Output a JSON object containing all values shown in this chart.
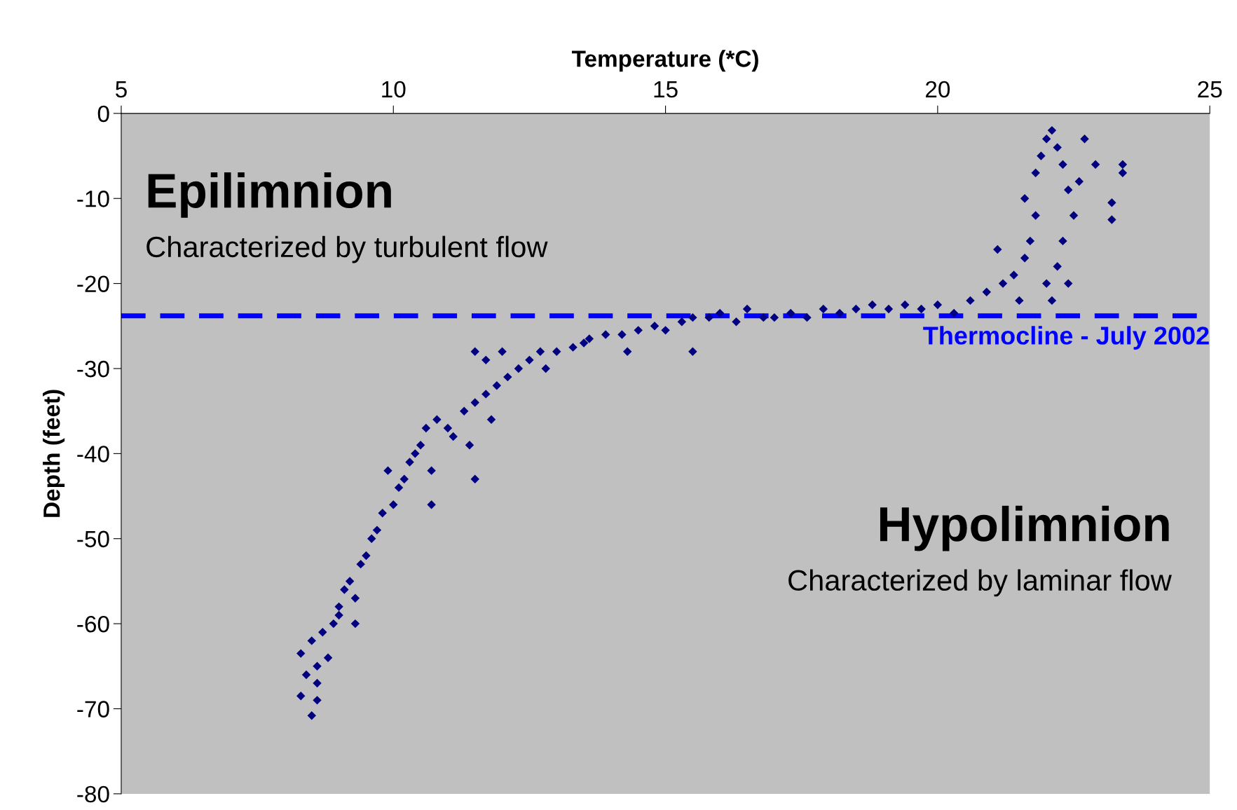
{
  "chart_data": {
    "type": "scatter",
    "xlabel": "Temperature (*C)",
    "ylabel": "Depth (feet)",
    "xlim": [
      5,
      25
    ],
    "xticks": [
      5,
      10,
      15,
      20,
      25
    ],
    "ylim": [
      -80,
      0
    ],
    "yticks": [
      -80,
      -70,
      -60,
      -50,
      -40,
      -30,
      -20,
      -10,
      0
    ],
    "marker": "diamond",
    "grid": false,
    "legend": false,
    "series": [
      {
        "color": "#000080",
        "x": [
          8.3,
          8.5,
          8.6,
          8.4,
          8.3,
          8.5,
          8.7,
          8.8,
          8.6,
          8.9,
          9.0,
          9.1,
          9.3,
          9.2,
          9.4,
          9.5,
          9.6,
          9.7,
          9.8,
          10.0,
          10.1,
          10.2,
          10.3,
          10.5,
          10.6,
          10.8,
          11.0,
          11.1,
          10.7,
          9.9,
          9.3,
          10.7,
          11.4,
          11.3,
          11.5,
          11.7,
          11.8,
          11.9,
          12.1,
          12.3,
          11.5,
          11.7,
          12.0,
          12.5,
          12.7,
          13.0,
          13.3,
          13.6,
          13.9,
          14.2,
          14.5,
          14.8,
          15.0,
          15.3,
          15.5,
          15.8,
          16.0,
          16.3,
          16.5,
          16.8,
          17.0,
          17.3,
          17.6,
          17.9,
          18.2,
          18.5,
          18.8,
          19.1,
          19.4,
          19.7,
          20.0,
          20.3,
          20.6,
          20.9,
          21.2,
          21.4,
          21.5,
          21.6,
          21.7,
          21.8,
          21.6,
          21.8,
          21.9,
          22.0,
          22.1,
          22.2,
          22.3,
          22.4,
          22.5,
          22.3,
          22.2,
          22.0,
          22.1,
          22.4,
          22.6,
          22.7,
          22.9,
          23.4,
          23.4,
          23.2,
          23.2,
          21.1,
          14.3,
          15.5,
          11.5,
          8.6,
          9.0,
          10.4,
          12.8,
          13.5
        ],
        "values": [
          -68.5,
          -70.8,
          -69,
          -66,
          -63.5,
          -62,
          -61,
          -64,
          -67,
          -60,
          -58,
          -56,
          -57,
          -55,
          -53,
          -52,
          -50,
          -49,
          -47,
          -46,
          -44,
          -43,
          -41,
          -39,
          -37,
          -36,
          -37,
          -38,
          -42,
          -42,
          -60,
          -46,
          -39,
          -35,
          -34,
          -33,
          -36,
          -32,
          -31,
          -30,
          -28,
          -29,
          -28,
          -29,
          -28,
          -28,
          -27.5,
          -26.5,
          -26,
          -26,
          -25.5,
          -25,
          -25.5,
          -24.5,
          -24,
          -24,
          -23.5,
          -24.5,
          -23,
          -24,
          -24,
          -23.5,
          -24,
          -23,
          -23.5,
          -23,
          -22.5,
          -23,
          -22.5,
          -23,
          -22.5,
          -23.5,
          -22,
          -21,
          -20,
          -19,
          -22,
          -17,
          -15,
          -12,
          -10,
          -7,
          -5,
          -3,
          -2,
          -4,
          -6,
          -9,
          -12,
          -15,
          -18,
          -20,
          -22,
          -20,
          -8,
          -3,
          -6,
          -6,
          -7,
          -10.5,
          -12.5,
          -16,
          -28,
          -28,
          -43,
          -65,
          -59,
          -40,
          -30,
          -27
        ]
      }
    ],
    "ref_lines": [
      {
        "axis": "y",
        "value": -23.8,
        "label": "Thermocline - July 2002",
        "color": "#0000ff",
        "line_style": "dashed"
      }
    ],
    "annotations": [
      "Epilimnion",
      "Characterized by turbulent flow",
      "Hypolimnion",
      "Characterized by laminar flow"
    ]
  }
}
